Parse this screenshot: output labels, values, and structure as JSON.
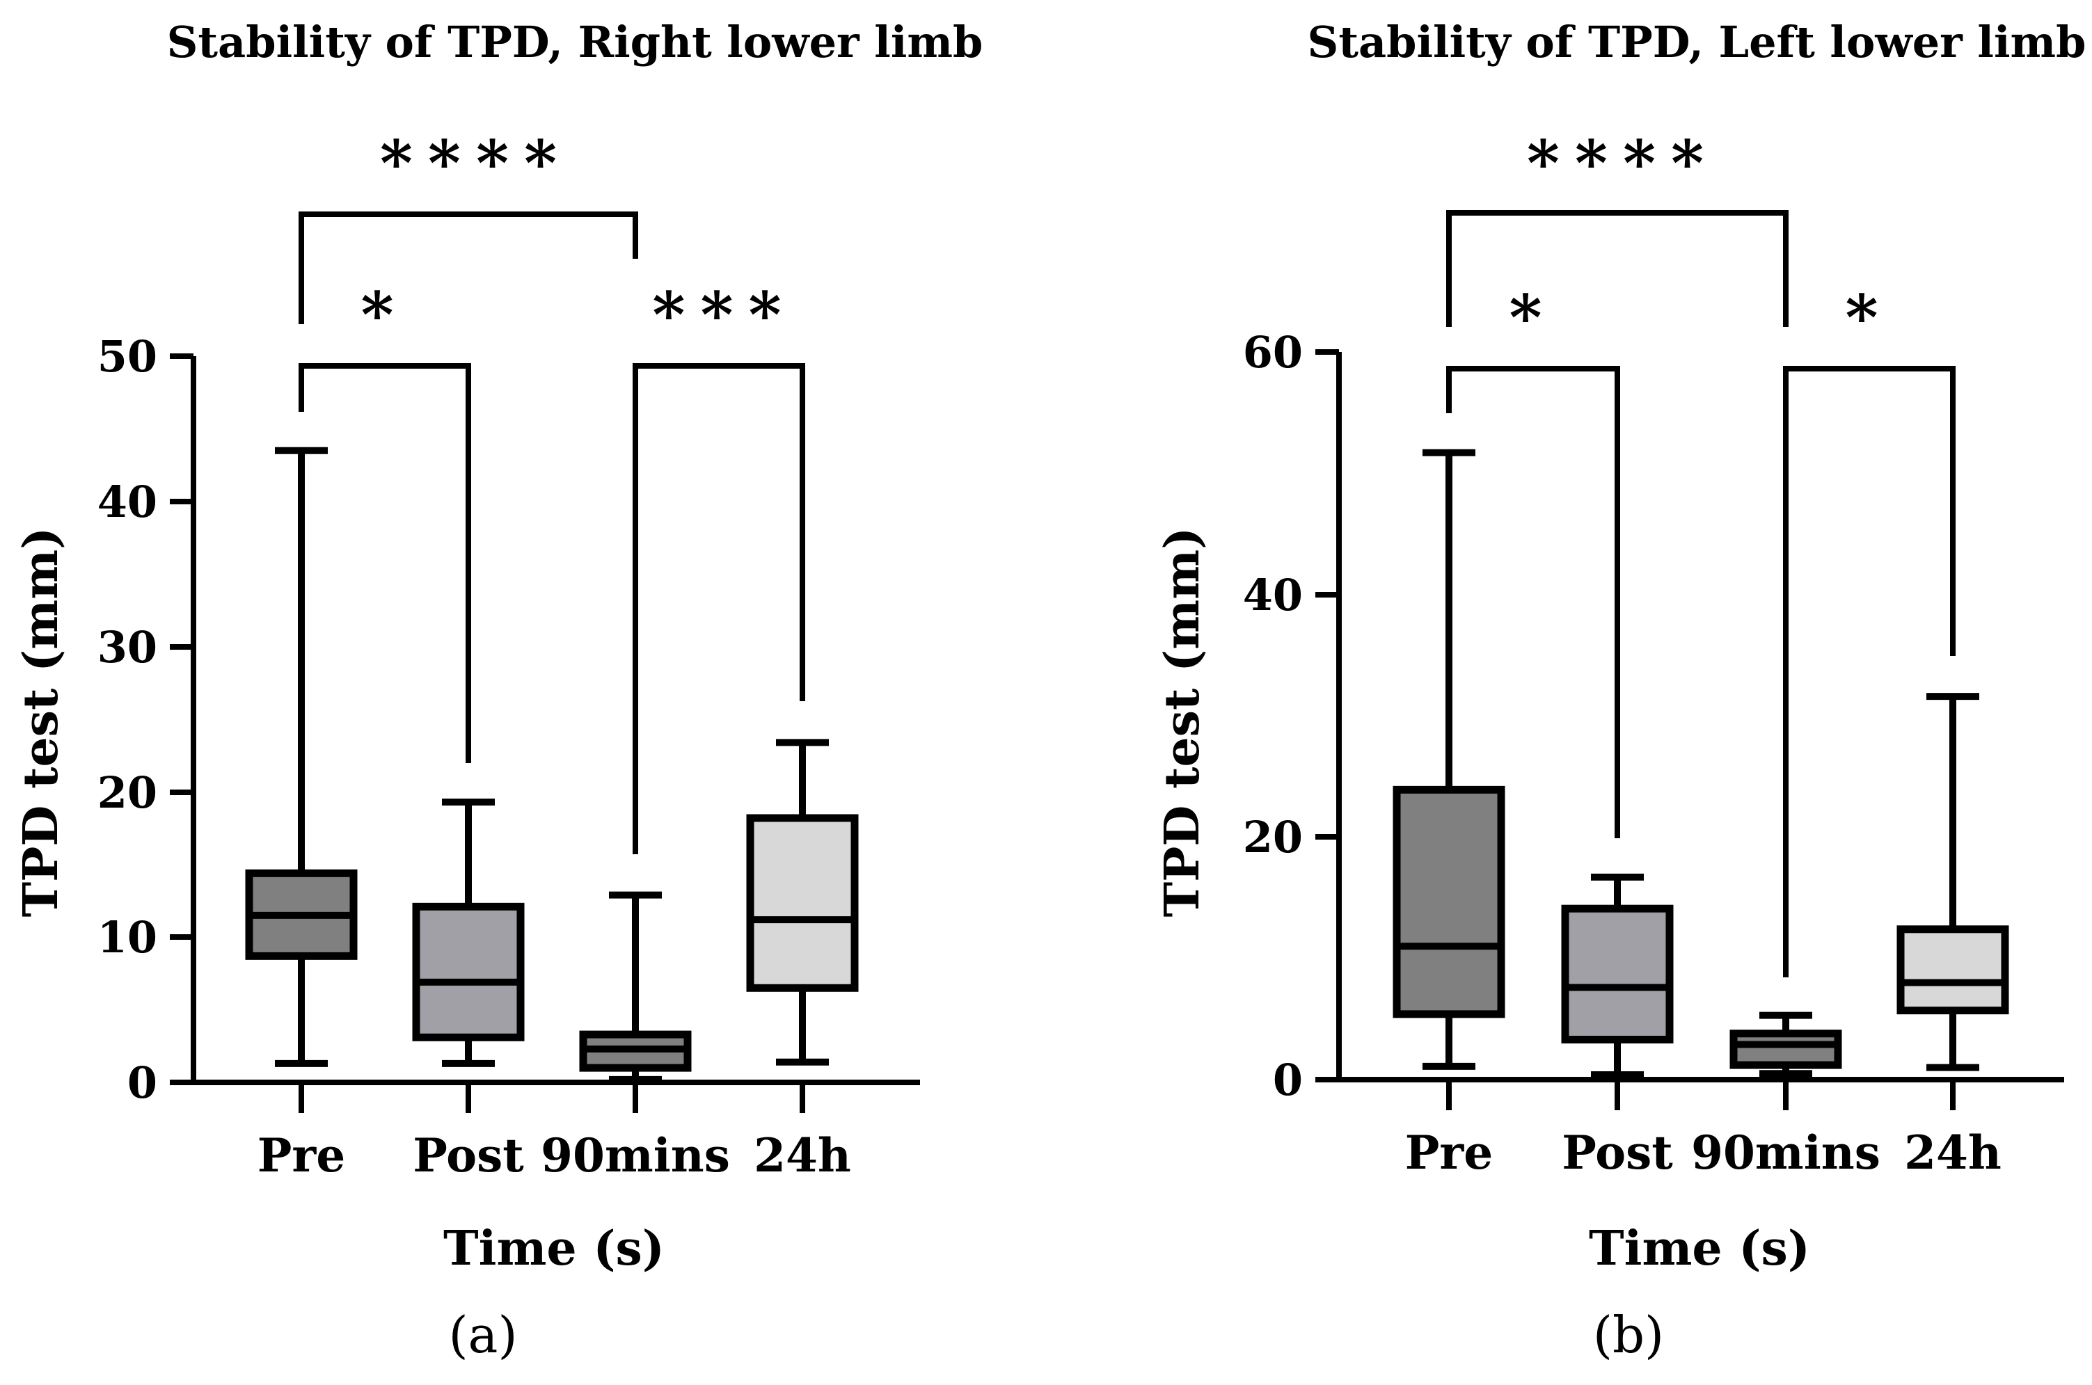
{
  "chart_data": [
    {
      "type": "box",
      "title": "Stability of TPD, Right lower limb",
      "xlabel": "Time (s)",
      "ylabel": "TPD test (mm)",
      "panel_label": "(a)",
      "ylim": [
        0,
        50
      ],
      "yticks": [
        "0",
        "10",
        "20",
        "30",
        "40",
        "50"
      ],
      "categories": [
        "Pre",
        "Post",
        "90mins",
        "24h"
      ],
      "boxes": [
        {
          "name": "Pre",
          "min": 1.3,
          "q1": 8.7,
          "median": 11.5,
          "q3": 14.4,
          "max": 43.5,
          "fill": "#808080"
        },
        {
          "name": "Post",
          "min": 1.3,
          "q1": 3.1,
          "median": 6.9,
          "q3": 12.1,
          "max": 19.3,
          "fill": "#a0a0a6"
        },
        {
          "name": "90mins",
          "min": 0.2,
          "q1": 1.0,
          "median": 2.3,
          "q3": 3.3,
          "max": 12.9,
          "fill": "#808080"
        },
        {
          "name": "24h",
          "min": 1.4,
          "q1": 6.5,
          "median": 11.2,
          "q3": 18.2,
          "max": 23.4,
          "fill": "#d8d8d8"
        }
      ],
      "comparisons": [
        {
          "from": 0,
          "to": 2,
          "label": "****",
          "level": "upper"
        },
        {
          "from": 0,
          "to": 1,
          "label": "*",
          "level": "lower"
        },
        {
          "from": 2,
          "to": 3,
          "label": "***",
          "level": "lower"
        }
      ]
    },
    {
      "type": "box",
      "title": "Stability of TPD, Left lower limb",
      "xlabel": "Time (s)",
      "ylabel": "TPD test (mm)",
      "panel_label": "(b)",
      "ylim": [
        0,
        60
      ],
      "yticks": [
        "0",
        "20",
        "40",
        "60"
      ],
      "categories": [
        "Pre",
        "Post",
        "90mins",
        "24h"
      ],
      "boxes": [
        {
          "name": "Pre",
          "min": 1.1,
          "q1": 5.4,
          "median": 11.0,
          "q3": 23.9,
          "max": 51.7,
          "fill": "#808080"
        },
        {
          "name": "Post",
          "min": 0.4,
          "q1": 3.3,
          "median": 7.6,
          "q3": 14.1,
          "max": 16.7,
          "fill": "#a0a0a6"
        },
        {
          "name": "90mins",
          "min": 0.5,
          "q1": 1.2,
          "median": 2.9,
          "q3": 3.8,
          "max": 5.3,
          "fill": "#808080"
        },
        {
          "name": "24h",
          "min": 1.0,
          "q1": 5.7,
          "median": 8.0,
          "q3": 12.4,
          "max": 31.6,
          "fill": "#d8d8d8"
        }
      ],
      "comparisons": [
        {
          "from": 0,
          "to": 2,
          "label": "****",
          "level": "upper"
        },
        {
          "from": 0,
          "to": 1,
          "label": "*",
          "level": "lower"
        },
        {
          "from": 2,
          "to": 3,
          "label": "*",
          "level": "lower"
        }
      ]
    }
  ]
}
